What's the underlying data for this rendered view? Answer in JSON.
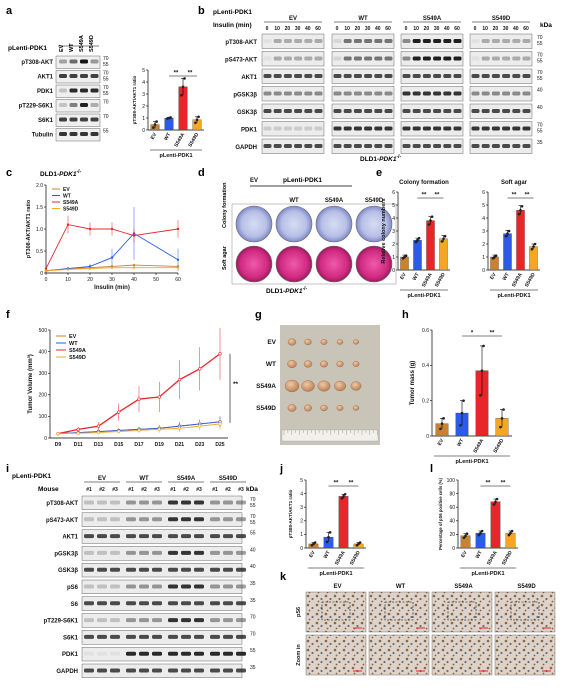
{
  "panels": {
    "a": {
      "letter": "a",
      "header_label": "pLenti-PDK1",
      "lanes": [
        "EV",
        "WT",
        "S549A",
        "S549D"
      ],
      "rows": [
        "pT308-AKT",
        "AKT1",
        "PDK1",
        "pT229-S6K1",
        "S6K1",
        "Tubulin"
      ],
      "row_mw": [
        [
          "70",
          "55"
        ],
        [
          "70",
          "55"
        ],
        [
          "70",
          "55"
        ],
        [
          "70"
        ],
        [
          "70"
        ],
        [
          "55"
        ]
      ],
      "cell_line": "DLD1-",
      "cell_gene": "PDK1",
      "cell_sup": "-/-"
    },
    "b": {
      "letter": "b",
      "header_label": "pLenti-PDK1",
      "groups": [
        "EV",
        "WT",
        "S549A",
        "S549D"
      ],
      "insulin_label": "Insulin (min)",
      "times": [
        "0",
        "10",
        "20",
        "30",
        "40",
        "60"
      ],
      "kda": "kDa",
      "rows": [
        "pT308-AKT",
        "pS473-AKT",
        "AKT1",
        "pGSK3β",
        "GSK3β",
        "PDK1",
        "GAPDH"
      ],
      "row_mw": [
        [
          "70",
          "55"
        ],
        [
          "70",
          "55"
        ],
        [
          "70",
          "55"
        ],
        [
          "40"
        ],
        [
          "40"
        ],
        [
          "70",
          "55"
        ],
        [
          "35"
        ]
      ],
      "cell_line": "DLD1-",
      "cell_gene": "PDK1",
      "cell_sup": "-/-"
    },
    "c": {
      "letter": "c"
    },
    "d": {
      "letter": "d",
      "header_label": "pLenti-PDK1",
      "lanes": [
        "EV",
        "WT",
        "S549A",
        "S549D"
      ],
      "row_labels": [
        "Colony formation",
        "Soft agar"
      ],
      "cell_line": "DLD1-",
      "cell_gene": "PDK1",
      "cell_sup": "-/-"
    },
    "e": {
      "letter": "e"
    },
    "f": {
      "letter": "f"
    },
    "g": {
      "letter": "g",
      "rows": [
        "EV",
        "WT",
        "S549A",
        "S549D"
      ],
      "tumors_per_row": [
        5,
        5,
        5,
        5
      ]
    },
    "h": {
      "letter": "h"
    },
    "i": {
      "letter": "i",
      "header_label": "pLenti-PDK1",
      "groups": [
        "EV",
        "WT",
        "S549A",
        "S549D"
      ],
      "mouse_label": "Mouse",
      "mice": [
        "#1",
        "#2",
        "#3"
      ],
      "rows": [
        "pT308-AKT",
        "pS473-AKT",
        "AKT1",
        "pGSK3β",
        "GSK3β",
        "pS6",
        "S6",
        "pT229-S6K1",
        "S6K1",
        "PDK1",
        "GAPDH"
      ],
      "row_mw": [
        [
          "70",
          "55"
        ],
        [
          "70",
          "55"
        ],
        [
          "55"
        ],
        [
          "40"
        ],
        [
          "40"
        ],
        [
          "35"
        ],
        [
          "35"
        ],
        [
          "70"
        ],
        [
          "70"
        ],
        [
          "55"
        ],
        [
          "35"
        ]
      ],
      "kda": "kDa"
    },
    "j": {
      "letter": "j"
    },
    "k": {
      "letter": "k",
      "columns": [
        "EV",
        "WT",
        "S549A",
        "S549D"
      ],
      "rows": [
        "pS6",
        "Zoom in"
      ]
    },
    "l": {
      "letter": "l"
    }
  },
  "chart_data": [
    {
      "id": "a",
      "type": "bar",
      "categories": [
        "EV",
        "WT",
        "S549A",
        "S549D"
      ],
      "values": [
        0.45,
        1.0,
        3.6,
        0.85
      ],
      "errors": [
        0.25,
        0.05,
        0.7,
        0.25
      ],
      "points": [
        [
          0.2,
          0.45,
          0.7
        ],
        [
          0.95,
          1.0,
          1.05
        ],
        [
          2.9,
          3.6,
          4.3
        ],
        [
          0.6,
          0.85,
          1.1
        ]
      ],
      "colors": [
        "#C9822F",
        "#2B5BE8",
        "#E8262A",
        "#F5A623"
      ],
      "ylabel": "pT308-AKT/AKT1 ratio",
      "xlabel": "pLenti-PDK1",
      "ylim": [
        0,
        5
      ],
      "yticks": [
        "0",
        "1",
        "2",
        "3",
        "4",
        "5"
      ],
      "sig": [
        {
          "from": 1,
          "to": 2,
          "label": "**"
        },
        {
          "from": 2,
          "to": 3,
          "label": "**"
        }
      ]
    },
    {
      "id": "c",
      "type": "line",
      "x": [
        0,
        10,
        20,
        30,
        40,
        60
      ],
      "series": [
        {
          "name": "EV",
          "color": "#C9822F",
          "values": [
            0.05,
            0.1,
            0.12,
            0.15,
            0.18,
            0.15
          ],
          "err": [
            0.02,
            0.03,
            0.03,
            0.03,
            0.03,
            0.03
          ]
        },
        {
          "name": "WT",
          "color": "#2B5BE8",
          "values": [
            0.05,
            0.1,
            0.15,
            0.35,
            0.9,
            0.3
          ],
          "err": [
            0.02,
            0.04,
            0.06,
            0.2,
            0.6,
            0.25
          ]
        },
        {
          "name": "S549A",
          "color": "#E8262A",
          "values": [
            0.1,
            1.1,
            1.0,
            1.0,
            0.85,
            1.0
          ],
          "err": [
            0.05,
            0.2,
            0.15,
            0.15,
            0.15,
            0.2
          ]
        },
        {
          "name": "S549D",
          "color": "#F5A623",
          "values": [
            0.05,
            0.08,
            0.1,
            0.12,
            0.12,
            0.12
          ],
          "err": [
            0.02,
            0.02,
            0.02,
            0.02,
            0.02,
            0.02
          ]
        }
      ],
      "xlabel": "Insulin (min)",
      "ylabel": "pT308-AKT/AKT1 ratio",
      "xlim": [
        0,
        60
      ],
      "xticks": [
        0,
        10,
        20,
        30,
        40,
        50,
        60
      ],
      "ylim": [
        0,
        2.0
      ],
      "yticks": [
        "0",
        "0.5",
        "1.0",
        "1.5",
        "2.0"
      ]
    },
    {
      "id": "e",
      "type": "bar",
      "subcharts": [
        {
          "title": "Colony formation",
          "categories": [
            "EV",
            "WT",
            "S549A",
            "S549D"
          ],
          "values": [
            1.0,
            2.3,
            3.8,
            2.4
          ],
          "errors": [
            0.15,
            0.15,
            0.3,
            0.25
          ],
          "points": [
            [
              0.9,
              1.0,
              1.1
            ],
            [
              2.15,
              2.3,
              2.45
            ],
            [
              3.5,
              3.8,
              4.1
            ],
            [
              2.2,
              2.4,
              2.6
            ]
          ],
          "xlabel": "pLenti-PDK1",
          "sig": [
            {
              "from": 1,
              "to": 2,
              "label": "**"
            },
            {
              "from": 2,
              "to": 3,
              "label": "**"
            }
          ]
        },
        {
          "title": "Soft agar",
          "categories": [
            "EV",
            "WT",
            "S549A",
            "S549D"
          ],
          "values": [
            1.0,
            2.8,
            4.6,
            1.8
          ],
          "errors": [
            0.15,
            0.25,
            0.35,
            0.2
          ],
          "points": [
            [
              0.9,
              1.0,
              1.1
            ],
            [
              2.6,
              2.8,
              3.0
            ],
            [
              4.3,
              4.6,
              4.9
            ],
            [
              1.6,
              1.8,
              2.0
            ]
          ],
          "xlabel": "pLenti-PDK1",
          "sig": [
            {
              "from": 1,
              "to": 2,
              "label": "**"
            },
            {
              "from": 2,
              "to": 3,
              "label": "**"
            }
          ]
        }
      ],
      "colors": [
        "#C9822F",
        "#2B5BE8",
        "#E8262A",
        "#F5A623"
      ],
      "ylabel": "Relative colony numbers",
      "ylim": [
        0,
        6
      ],
      "yticks": [
        "0",
        "1",
        "2",
        "3",
        "4",
        "5",
        "6"
      ]
    },
    {
      "id": "f",
      "type": "line",
      "categories": [
        "D9",
        "D11",
        "D13",
        "D15",
        "D17",
        "D19",
        "D21",
        "D23",
        "D25"
      ],
      "series": [
        {
          "name": "EV",
          "color": "#C9822F",
          "values": [
            20,
            25,
            30,
            35,
            40,
            45,
            55,
            65,
            75
          ],
          "err": [
            5,
            5,
            8,
            10,
            12,
            15,
            18,
            20,
            25
          ]
        },
        {
          "name": "WT",
          "color": "#2B5BE8",
          "values": [
            20,
            25,
            30,
            35,
            40,
            45,
            55,
            65,
            75
          ],
          "err": [
            5,
            5,
            8,
            10,
            12,
            15,
            18,
            20,
            25
          ]
        },
        {
          "name": "S549A",
          "color": "#E8262A",
          "values": [
            20,
            40,
            55,
            120,
            180,
            190,
            270,
            320,
            390
          ],
          "err": [
            5,
            10,
            20,
            40,
            60,
            70,
            90,
            100,
            120
          ]
        },
        {
          "name": "S549D",
          "color": "#F5A623",
          "values": [
            20,
            22,
            25,
            30,
            35,
            40,
            45,
            55,
            65
          ],
          "err": [
            5,
            5,
            8,
            10,
            12,
            15,
            18,
            20,
            25
          ]
        }
      ],
      "ylabel": "Tumor Volume (mm³)",
      "ylim": [
        0,
        500
      ],
      "yticks": [
        "0",
        "100",
        "200",
        "300",
        "400",
        "500"
      ],
      "sig_label": "**"
    },
    {
      "id": "h",
      "type": "bar",
      "categories": [
        "EV",
        "WT",
        "S549A",
        "S549D"
      ],
      "values": [
        0.07,
        0.13,
        0.37,
        0.1
      ],
      "errors": [
        0.03,
        0.07,
        0.14,
        0.05
      ],
      "points": [
        [
          0.04,
          0.07,
          0.1
        ],
        [
          0.06,
          0.13,
          0.2
        ],
        [
          0.23,
          0.37,
          0.51
        ],
        [
          0.05,
          0.1,
          0.15
        ]
      ],
      "colors": [
        "#C9822F",
        "#2B5BE8",
        "#E8262A",
        "#F5A623"
      ],
      "ylabel": "Tumor mass (g)",
      "xlabel": "pLenti-PDK1",
      "ylim": [
        0,
        0.6
      ],
      "yticks": [
        "0",
        "0.2",
        "0.4",
        "0.6"
      ],
      "sig": [
        {
          "from": 1,
          "to": 2,
          "label": "*"
        },
        {
          "from": 2,
          "to": 3,
          "label": "**"
        }
      ]
    },
    {
      "id": "j",
      "type": "bar",
      "categories": [
        "EV",
        "WT",
        "S549A",
        "S549D"
      ],
      "values": [
        0.3,
        0.8,
        3.8,
        0.3
      ],
      "errors": [
        0.1,
        0.35,
        0.15,
        0.1
      ],
      "points": [
        [
          0.2,
          0.3,
          0.4
        ],
        [
          0.45,
          0.8,
          1.15
        ],
        [
          3.65,
          3.8,
          3.95
        ],
        [
          0.2,
          0.3,
          0.4
        ]
      ],
      "colors": [
        "#C9822F",
        "#2B5BE8",
        "#E8262A",
        "#F5A623"
      ],
      "ylabel": "pT308-AKT/AKT1 ratio",
      "xlabel": "pLenti-PDK1",
      "ylim": [
        0,
        5
      ],
      "yticks": [
        "0",
        "1",
        "2",
        "3",
        "4",
        "5"
      ],
      "sig": [
        {
          "from": 1,
          "to": 2,
          "label": "**"
        },
        {
          "from": 2,
          "to": 3,
          "label": "**"
        }
      ]
    },
    {
      "id": "l",
      "type": "bar",
      "categories": [
        "EV",
        "WT",
        "S549A",
        "S549D"
      ],
      "values": [
        18,
        22,
        68,
        22
      ],
      "errors": [
        3,
        3,
        4,
        3
      ],
      "points": [
        [
          15,
          18,
          21
        ],
        [
          19,
          22,
          25
        ],
        [
          64,
          68,
          72
        ],
        [
          19,
          22,
          25
        ]
      ],
      "colors": [
        "#C9822F",
        "#2B5BE8",
        "#E8262A",
        "#F5A623"
      ],
      "ylabel": "Percentage of pS6 positive cells (%)",
      "xlabel": "pLenti-PDK1",
      "ylim": [
        0,
        100
      ],
      "yticks": [
        "0",
        "20",
        "40",
        "60",
        "80",
        "100"
      ],
      "sig": [
        {
          "from": 1,
          "to": 2,
          "label": "**"
        },
        {
          "from": 2,
          "to": 3,
          "label": "**"
        }
      ]
    }
  ]
}
